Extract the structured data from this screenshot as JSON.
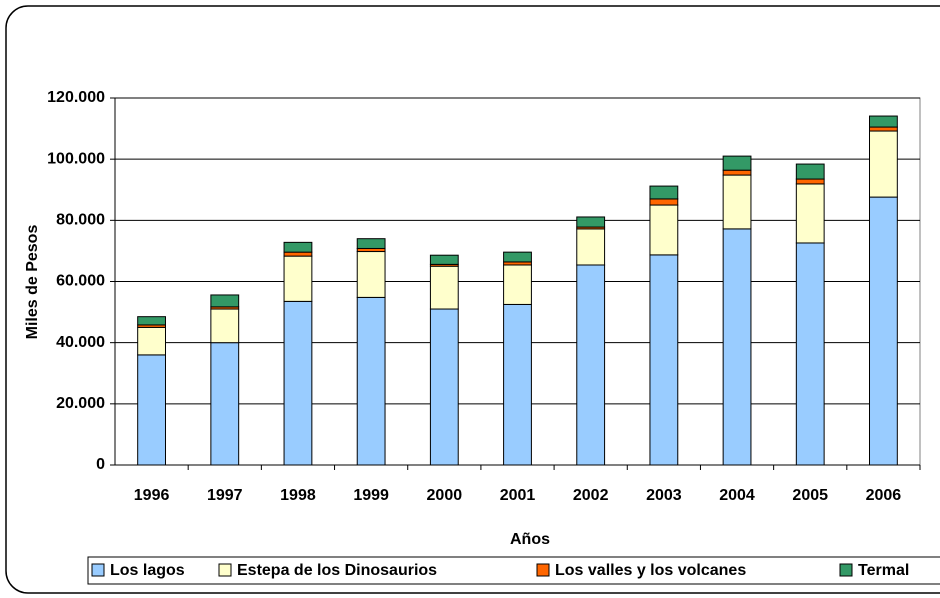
{
  "chart_data": {
    "type": "stacked_bar",
    "categories": [
      "1996",
      "1997",
      "1998",
      "1999",
      "2000",
      "2001",
      "2002",
      "2003",
      "2004",
      "2005",
      "2006"
    ],
    "series": [
      {
        "name": "Los lagos",
        "color": "#99ccff",
        "values": [
          36000,
          40000,
          53500,
          54800,
          51000,
          52500,
          65400,
          68700,
          77200,
          72600,
          87600
        ]
      },
      {
        "name": "Estepa de los Dinosaurios",
        "color": "#ffffcc",
        "values": [
          9000,
          11000,
          14800,
          15000,
          14000,
          12900,
          11800,
          16300,
          17600,
          19300,
          21600
        ]
      },
      {
        "name": "Los valles y los volcanes",
        "color": "#ff6600",
        "values": [
          800,
          700,
          1300,
          1000,
          600,
          1000,
          600,
          2000,
          1600,
          1600,
          1300
        ]
      },
      {
        "name": "Termal",
        "color": "#339966",
        "values": [
          2700,
          3900,
          3200,
          3200,
          3000,
          3200,
          3300,
          4200,
          4600,
          4900,
          3600
        ]
      }
    ],
    "xlabel": "Años",
    "ylabel": "Miles de Pesos",
    "ylim": [
      0,
      120000
    ],
    "yticks": [
      0,
      {
        "value": 20000,
        "label": "20.000"
      },
      {
        "value": 40000,
        "label": "40.000"
      },
      {
        "value": 60000,
        "label": "60.000"
      },
      {
        "value": 80000,
        "label": "80.000"
      },
      {
        "value": 100000,
        "label": "100.000"
      },
      {
        "value": 120000,
        "label": "120.000"
      }
    ],
    "grid": true,
    "legend": "bottom"
  }
}
